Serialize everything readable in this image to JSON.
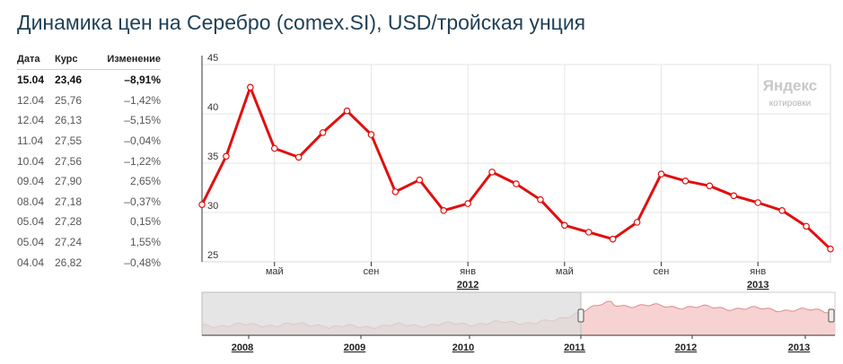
{
  "title": "Динамика цен на Серебро (comex.SI), USD/тройская унция",
  "table": {
    "headers": [
      "Дата",
      "Курс",
      "Изменение"
    ],
    "rows": [
      {
        "date": "15.04",
        "rate": "23,46",
        "change": "–8,91%"
      },
      {
        "date": "12.04",
        "rate": "25,76",
        "change": "–1,42%"
      },
      {
        "date": "12.04",
        "rate": "26,13",
        "change": "–5,15%"
      },
      {
        "date": "11.04",
        "rate": "27,55",
        "change": "–0,04%"
      },
      {
        "date": "10.04",
        "rate": "27,56",
        "change": "–1,22%"
      },
      {
        "date": "09.04",
        "rate": "27,90",
        "change": "2,65%"
      },
      {
        "date": "08.04",
        "rate": "27,18",
        "change": "–0,37%"
      },
      {
        "date": "05.04",
        "rate": "27,28",
        "change": "0,15%"
      },
      {
        "date": "05.04",
        "rate": "27,24",
        "change": "1,55%"
      },
      {
        "date": "04.04",
        "rate": "26,82",
        "change": "–0,48%"
      }
    ]
  },
  "brand": {
    "name": "Яндекс",
    "sub": "котировки"
  },
  "colors": {
    "line": "#e01010",
    "title": "#1f3f57",
    "navigator_fill": "#f7d2d2",
    "navigator_mask": "#dcdcdc"
  },
  "chart_data": {
    "type": "line",
    "title": "",
    "xlabel": "",
    "ylabel": "",
    "ylim": [
      25,
      45
    ],
    "yticks": [
      25,
      30,
      35,
      40,
      45
    ],
    "x_month_labels": [
      {
        "label": "май",
        "index": 3
      },
      {
        "label": "сен",
        "index": 7
      },
      {
        "label": "янв",
        "index": 11
      },
      {
        "label": "май",
        "index": 15
      },
      {
        "label": "сен",
        "index": 19
      },
      {
        "label": "янв",
        "index": 23
      }
    ],
    "x_year_labels": [
      {
        "label": "2012",
        "index": 11
      },
      {
        "label": "2013",
        "index": 23
      }
    ],
    "grid": true,
    "series": [
      {
        "values": [
          30.8,
          35.7,
          42.7,
          36.5,
          35.6,
          38.1,
          40.3,
          37.9,
          32.1,
          33.3,
          30.2,
          30.9,
          34.1,
          32.9,
          31.3,
          28.7,
          28.0,
          27.3,
          29.0,
          33.9,
          33.2,
          32.7,
          31.7,
          31.0,
          30.2,
          28.6,
          26.3
        ]
      }
    ],
    "navigator": {
      "year_labels": [
        "2008",
        "2009",
        "2010",
        "2011",
        "2012",
        "2013"
      ],
      "selected_range": [
        "2011",
        "2013"
      ]
    }
  }
}
